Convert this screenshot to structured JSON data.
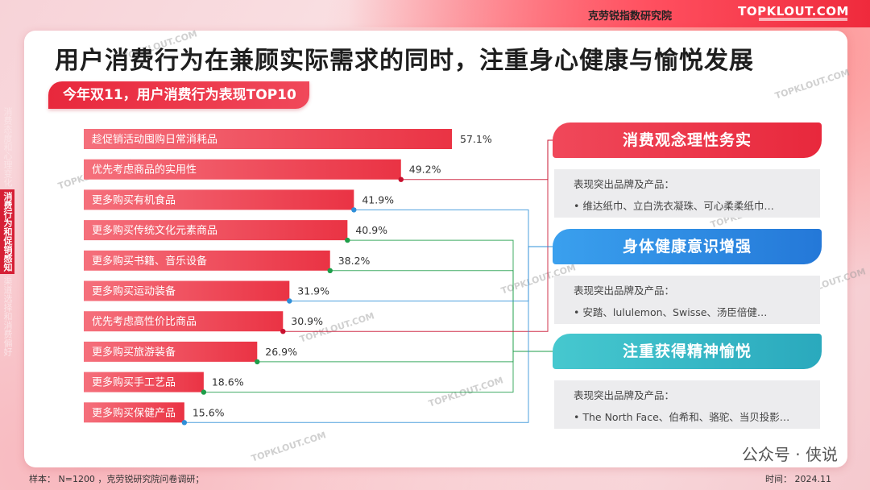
{
  "header": {
    "brand_cn": "克劳锐指数研究院",
    "logo": "TOPKLOUT.COM"
  },
  "title": "用户消费行为在兼顾实际需求的同时，注重身心健康与愉悦发展",
  "subtitle": "今年双11，用户消费行为表现TOP10",
  "side_nav": [
    {
      "label": "消费态度和心理变化",
      "active": false
    },
    {
      "label": "消费行为和促销感知",
      "active": true
    },
    {
      "label": "渠道选择和消费偏好",
      "active": false
    }
  ],
  "chart_data": {
    "type": "bar",
    "orientation": "horizontal",
    "categories": [
      "趁促销活动囤购日常消耗品",
      "优先考虑商品的实用性",
      "更多购买有机食品",
      "更多购买传统文化元素商品",
      "更多购买书籍、音乐设备",
      "更多购买运动装备",
      "优先考虑高性价比商品",
      "更多购买旅游装备",
      "更多购买手工艺品",
      "更多购买保健产品"
    ],
    "values": [
      57.1,
      49.2,
      41.9,
      40.9,
      38.2,
      31.9,
      30.9,
      26.9,
      18.6,
      15.6
    ],
    "value_labels": [
      "57.1%",
      "49.2%",
      "41.9%",
      "40.9%",
      "38.2%",
      "31.9%",
      "30.9%",
      "26.9%",
      "18.6%",
      "15.6%"
    ],
    "groups": [
      "none",
      "red",
      "blue",
      "green",
      "green",
      "blue",
      "red",
      "green",
      "green",
      "blue"
    ],
    "xlim": [
      0,
      60
    ],
    "colors": {
      "bar": "#ee4050",
      "red": "#c8102e",
      "blue": "#2f8fd8",
      "green": "#1e9e4a"
    }
  },
  "panels": [
    {
      "heading": "消费观念理性务实",
      "label": "表现突出品牌及产品：",
      "items": "•  维达纸巾、立白洗衣凝珠、可心柔柔纸巾…",
      "color": "#e8283c"
    },
    {
      "heading": "身体健康意识增强",
      "label": "表现突出品牌及产品：",
      "items": "•  安踏、lululemon、Swisse、汤臣倍健…",
      "color": "#2e8fe0"
    },
    {
      "heading": "注重获得精神愉悦",
      "label": "表现突出品牌及产品：",
      "items": "•  The North Face、伯希和、骆驼、当贝投影…",
      "color": "#2fb7c4"
    }
  ],
  "footer": {
    "sample": "样本：  N=1200 ，克劳锐研究院问卷调研；",
    "time": "时间：  2024.11"
  },
  "watermark": {
    "wechat": "公众号 · 侠说",
    "site": "TOPKLOUT.COM"
  }
}
